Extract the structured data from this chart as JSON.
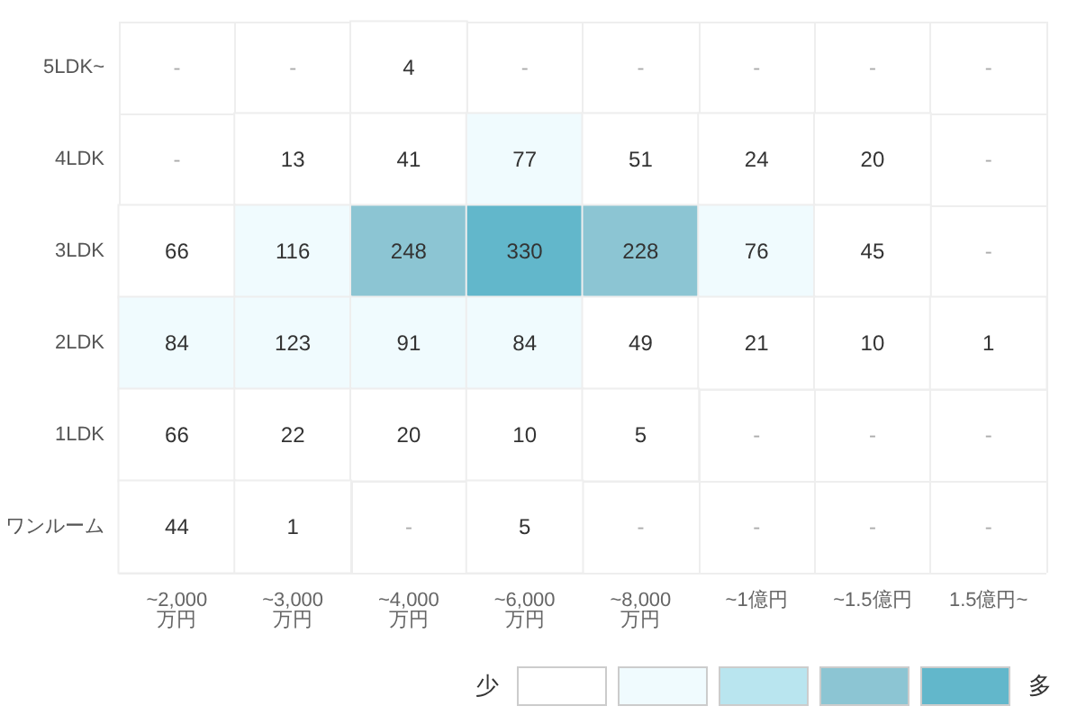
{
  "chart_data": {
    "type": "heatmap",
    "categories": [
      "~2,000\n万円",
      "~3,000\n万円",
      "~4,000\n万円",
      "~6,000\n万円",
      "~8,000\n万円",
      "~1億円",
      "~1.5億円",
      "1.5億円~"
    ],
    "data_labels": true,
    "y_categories": [
      "5LDK~",
      "4LDK",
      "3LDK",
      "2LDK",
      "1LDK",
      "ワンルーム"
    ],
    "cells": [
      [
        null,
        null,
        4,
        null,
        null,
        null,
        null,
        null
      ],
      [
        null,
        13,
        41,
        77,
        51,
        24,
        20,
        null
      ],
      [
        66,
        116,
        248,
        330,
        228,
        76,
        45,
        null
      ],
      [
        84,
        123,
        91,
        84,
        49,
        21,
        10,
        1
      ],
      [
        66,
        22,
        20,
        10,
        5,
        null,
        null,
        null
      ],
      [
        44,
        1,
        null,
        5,
        null,
        null,
        null,
        null
      ]
    ],
    "cell_labels": [
      [
        "-",
        "-",
        "4",
        "-",
        "-",
        "-",
        "-",
        "-"
      ],
      [
        "-",
        "13",
        "41",
        "77",
        "51",
        "24",
        "20",
        "-"
      ],
      [
        "66",
        "116",
        "248",
        "330",
        "228",
        "76",
        "45",
        "-"
      ],
      [
        "84",
        "123",
        "91",
        "84",
        "49",
        "21",
        "10",
        "1"
      ],
      [
        "66",
        "22",
        "20",
        "10",
        "5",
        "-",
        "-",
        "-"
      ],
      [
        "44",
        "1",
        "-",
        "5",
        "-",
        "-",
        "-",
        "-"
      ]
    ],
    "colors": [
      "#ffffff",
      "#f0fbfe",
      "#b9e5ef",
      "#8cc5d3",
      "#62b7cb"
    ],
    "annotations": [
      "少",
      "多"
    ],
    "grid": true
  }
}
